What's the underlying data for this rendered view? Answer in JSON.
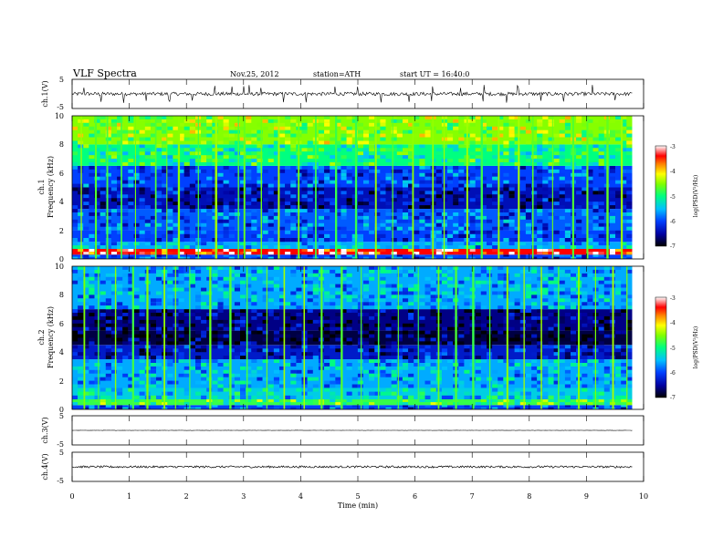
{
  "header": {
    "title": "VLF Spectra",
    "date": "Nov.25, 2012",
    "station": "station=ATH",
    "start": "start UT = 16:40:0"
  },
  "chart_data": [
    {
      "type": "line",
      "panel": "ch1-waveform",
      "ylabel": "ch.1(V)",
      "ylim": [
        -5,
        5
      ],
      "yticks": [
        5,
        -5
      ],
      "x_unit": "min",
      "xlim": [
        0,
        10
      ],
      "data_end_min": 9.8,
      "baseline": 0,
      "noise_amplitude": 0.6,
      "spike_amplitude": 2.5,
      "spike_times_min": [
        0.2,
        0.5,
        0.9,
        1.3,
        1.7,
        2.1,
        2.5,
        2.8,
        3.0,
        3.1,
        3.3,
        3.7,
        4.1,
        4.6,
        5.0,
        5.4,
        5.9,
        6.3,
        6.8,
        7.2,
        7.6,
        7.8,
        8.2,
        8.6,
        9.1,
        9.5
      ]
    },
    {
      "type": "heatmap",
      "panel": "ch1-spectrogram",
      "ylabel": "ch.1",
      "ylabel2": "Frequency (kHz)",
      "ylim": [
        0,
        10
      ],
      "yticks": [
        0,
        2,
        4,
        6,
        8,
        10
      ],
      "xlim": [
        0,
        10
      ],
      "data_end_min": 9.8,
      "colorbar": {
        "label": "log(PSD(V²/Hz)",
        "range": [
          -7,
          -3
        ],
        "ticks": [
          -3,
          -4,
          -5,
          -6,
          -7
        ]
      },
      "band_levels_logPSD": [
        {
          "from_khz": 0.0,
          "to_khz": 0.3,
          "level": -6.0
        },
        {
          "from_khz": 0.3,
          "to_khz": 0.7,
          "level": -3.4
        },
        {
          "from_khz": 0.7,
          "to_khz": 1.2,
          "level": -5.6
        },
        {
          "from_khz": 1.2,
          "to_khz": 2.0,
          "level": -6.0
        },
        {
          "from_khz": 2.0,
          "to_khz": 3.5,
          "level": -5.9
        },
        {
          "from_khz": 3.5,
          "to_khz": 5.0,
          "level": -6.4
        },
        {
          "from_khz": 5.0,
          "to_khz": 6.5,
          "level": -6.0
        },
        {
          "from_khz": 6.5,
          "to_khz": 8.0,
          "level": -5.0
        },
        {
          "from_khz": 8.0,
          "to_khz": 10.0,
          "level": -4.5
        }
      ],
      "sferic_times_min": [
        0.15,
        0.4,
        0.6,
        0.85,
        1.1,
        1.45,
        1.65,
        1.85,
        2.2,
        2.5,
        2.9,
        3.0,
        3.3,
        3.6,
        3.95,
        4.25,
        4.6,
        4.95,
        5.3,
        5.6,
        5.95,
        6.3,
        6.5,
        6.9,
        7.15,
        7.45,
        7.8,
        8.05,
        8.4,
        8.75,
        9.0,
        9.35,
        9.6
      ]
    },
    {
      "type": "heatmap",
      "panel": "ch2-spectrogram",
      "ylabel": "ch.2",
      "ylabel2": "Frequency (kHz)",
      "ylim": [
        0,
        10
      ],
      "yticks": [
        0,
        2,
        4,
        6,
        8,
        10
      ],
      "xlim": [
        0,
        10
      ],
      "data_end_min": 9.8,
      "colorbar": {
        "label": "log(PSD(V²/Hz)",
        "range": [
          -7,
          -3
        ],
        "ticks": [
          -3,
          -4,
          -5,
          -6,
          -7
        ]
      },
      "band_levels_logPSD": [
        {
          "from_khz": 0.0,
          "to_khz": 0.3,
          "level": -6.0
        },
        {
          "from_khz": 0.3,
          "to_khz": 0.7,
          "level": -4.8
        },
        {
          "from_khz": 0.7,
          "to_khz": 1.5,
          "level": -5.4
        },
        {
          "from_khz": 1.5,
          "to_khz": 3.5,
          "level": -5.6
        },
        {
          "from_khz": 3.5,
          "to_khz": 4.5,
          "level": -6.3
        },
        {
          "from_khz": 4.5,
          "to_khz": 5.5,
          "level": -6.8
        },
        {
          "from_khz": 5.5,
          "to_khz": 7.0,
          "level": -6.6
        },
        {
          "from_khz": 7.0,
          "to_khz": 10.0,
          "level": -5.6
        }
      ],
      "sferic_times_min": [
        0.2,
        0.45,
        0.75,
        1.05,
        1.3,
        1.6,
        1.8,
        2.05,
        2.4,
        2.75,
        3.05,
        3.4,
        3.7,
        4.05,
        4.35,
        4.7,
        5.05,
        5.35,
        5.7,
        6.05,
        6.4,
        6.7,
        7.0,
        7.3,
        7.6,
        7.9,
        8.2,
        8.5,
        8.85,
        9.15,
        9.45,
        9.7
      ]
    },
    {
      "type": "line",
      "panel": "ch3-waveform",
      "ylabel": "ch.3(V)",
      "ylim": [
        -5,
        5
      ],
      "yticks": [
        5,
        -5
      ],
      "xlim": [
        0,
        10
      ],
      "data_end_min": 9.8,
      "baseline": 0,
      "noise_amplitude": 0.05
    },
    {
      "type": "line",
      "panel": "ch4-waveform",
      "ylabel": "ch.4(V)",
      "ylim": [
        -5,
        5
      ],
      "yticks": [
        5,
        -5
      ],
      "xlim": [
        0,
        10
      ],
      "data_end_min": 9.8,
      "baseline": 0,
      "noise_amplitude": 0.35,
      "xlabel": "Time (min)",
      "xticks": [
        0,
        1,
        2,
        3,
        4,
        5,
        6,
        7,
        8,
        9,
        10
      ]
    }
  ]
}
